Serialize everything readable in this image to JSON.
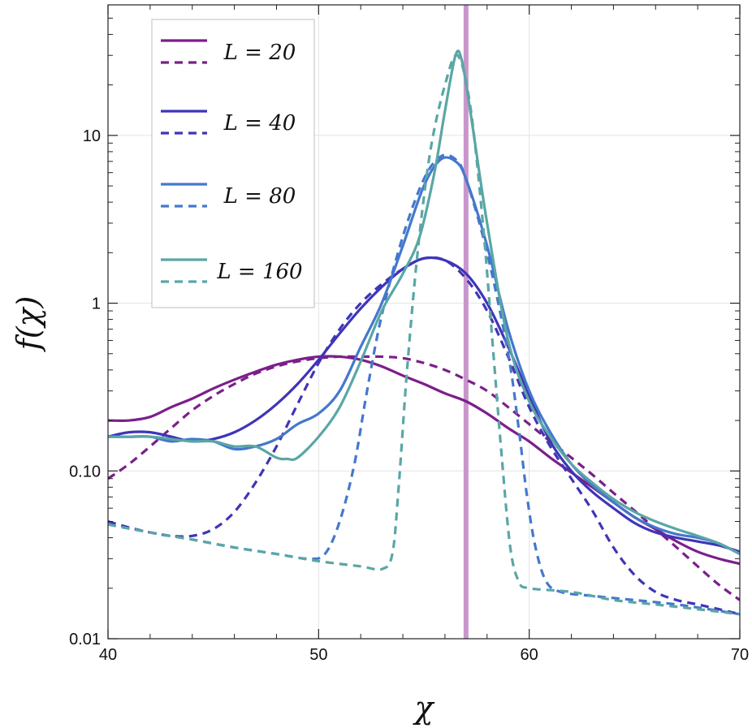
{
  "chart_data": {
    "type": "line",
    "title": "",
    "xlabel": "χ",
    "ylabel": "f(χ)",
    "xlim": [
      40,
      70
    ],
    "ylim": [
      0.01,
      60
    ],
    "yscale": "log",
    "grid": true,
    "legend_position": "top-left",
    "x_ticks": [
      40,
      50,
      60,
      70
    ],
    "x_tick_labels": [
      "40",
      "50",
      "60",
      "70"
    ],
    "y_ticks": [
      0.01,
      0.1,
      1,
      10
    ],
    "y_tick_labels": [
      "0.01",
      "0.10",
      "1",
      "10"
    ],
    "vertical_line": {
      "x": 57.0,
      "color": "#c996cc"
    },
    "legend": [
      "L = 20",
      "L = 40",
      "L = 80",
      "L = 160"
    ],
    "series": [
      {
        "name": "L = 20",
        "color": "#7b1f8a",
        "style": "solid",
        "points": [
          [
            40,
            0.2
          ],
          [
            41,
            0.2
          ],
          [
            42,
            0.21
          ],
          [
            43,
            0.24
          ],
          [
            44,
            0.27
          ],
          [
            45,
            0.31
          ],
          [
            46,
            0.35
          ],
          [
            47,
            0.39
          ],
          [
            48,
            0.43
          ],
          [
            49,
            0.46
          ],
          [
            50,
            0.48
          ],
          [
            51,
            0.48
          ],
          [
            52,
            0.46
          ],
          [
            53,
            0.42
          ],
          [
            54,
            0.37
          ],
          [
            55,
            0.33
          ],
          [
            56,
            0.29
          ],
          [
            57,
            0.26
          ],
          [
            58,
            0.22
          ],
          [
            59,
            0.18
          ],
          [
            60,
            0.15
          ],
          [
            61,
            0.12
          ],
          [
            62,
            0.098
          ],
          [
            63,
            0.08
          ],
          [
            64,
            0.065
          ],
          [
            65,
            0.053
          ],
          [
            66,
            0.045
          ],
          [
            67,
            0.038
          ],
          [
            68,
            0.033
          ],
          [
            69,
            0.03
          ],
          [
            70,
            0.028
          ]
        ]
      },
      {
        "name": "L = 20",
        "color": "#7b1f8a",
        "style": "dashed",
        "points": [
          [
            40,
            0.09
          ],
          [
            41,
            0.11
          ],
          [
            42,
            0.14
          ],
          [
            43,
            0.18
          ],
          [
            44,
            0.23
          ],
          [
            45,
            0.28
          ],
          [
            46,
            0.33
          ],
          [
            47,
            0.38
          ],
          [
            48,
            0.42
          ],
          [
            49,
            0.45
          ],
          [
            50,
            0.47
          ],
          [
            51,
            0.48
          ],
          [
            52,
            0.48
          ],
          [
            53,
            0.48
          ],
          [
            54,
            0.47
          ],
          [
            55,
            0.44
          ],
          [
            56,
            0.4
          ],
          [
            57,
            0.35
          ],
          [
            58,
            0.3
          ],
          [
            59,
            0.24
          ],
          [
            60,
            0.19
          ],
          [
            61,
            0.15
          ],
          [
            62,
            0.12
          ],
          [
            63,
            0.095
          ],
          [
            64,
            0.074
          ],
          [
            65,
            0.058
          ],
          [
            66,
            0.045
          ],
          [
            67,
            0.035
          ],
          [
            68,
            0.027
          ],
          [
            69,
            0.021
          ],
          [
            70,
            0.017
          ]
        ]
      },
      {
        "name": "L = 40",
        "color": "#3f35b8",
        "style": "solid",
        "points": [
          [
            40,
            0.16
          ],
          [
            41,
            0.17
          ],
          [
            42,
            0.17
          ],
          [
            43,
            0.16
          ],
          [
            44,
            0.15
          ],
          [
            45,
            0.155
          ],
          [
            46,
            0.17
          ],
          [
            47,
            0.2
          ],
          [
            48,
            0.25
          ],
          [
            49,
            0.33
          ],
          [
            50,
            0.46
          ],
          [
            51,
            0.66
          ],
          [
            52,
            0.93
          ],
          [
            53,
            1.25
          ],
          [
            54,
            1.6
          ],
          [
            55,
            1.85
          ],
          [
            56,
            1.8
          ],
          [
            57,
            1.5
          ],
          [
            58,
            1.0
          ],
          [
            59,
            0.55
          ],
          [
            60,
            0.28
          ],
          [
            61,
            0.15
          ],
          [
            62,
            0.1
          ],
          [
            63,
            0.075
          ],
          [
            64,
            0.06
          ],
          [
            65,
            0.049
          ],
          [
            66,
            0.043
          ],
          [
            67,
            0.04
          ],
          [
            68,
            0.038
          ],
          [
            69,
            0.036
          ],
          [
            70,
            0.033
          ]
        ]
      },
      {
        "name": "L = 40",
        "color": "#3f35b8",
        "style": "dashed",
        "points": [
          [
            40,
            0.05
          ],
          [
            41,
            0.046
          ],
          [
            42,
            0.043
          ],
          [
            43,
            0.041
          ],
          [
            44,
            0.041
          ],
          [
            45,
            0.045
          ],
          [
            46,
            0.057
          ],
          [
            47,
            0.085
          ],
          [
            48,
            0.14
          ],
          [
            49,
            0.25
          ],
          [
            50,
            0.44
          ],
          [
            51,
            0.7
          ],
          [
            52,
            1.0
          ],
          [
            53,
            1.3
          ],
          [
            54,
            1.6
          ],
          [
            55,
            1.85
          ],
          [
            56,
            1.8
          ],
          [
            57,
            1.4
          ],
          [
            58,
            0.9
          ],
          [
            59,
            0.48
          ],
          [
            60,
            0.24
          ],
          [
            61,
            0.14
          ],
          [
            62,
            0.09
          ],
          [
            63,
            0.058
          ],
          [
            64,
            0.035
          ],
          [
            65,
            0.024
          ],
          [
            66,
            0.019
          ],
          [
            67,
            0.017
          ],
          [
            68,
            0.016
          ],
          [
            69,
            0.015
          ],
          [
            70,
            0.014
          ]
        ]
      },
      {
        "name": "L = 80",
        "color": "#4478cc",
        "style": "solid",
        "points": [
          [
            40,
            0.16
          ],
          [
            41,
            0.16
          ],
          [
            42,
            0.16
          ],
          [
            43,
            0.15
          ],
          [
            44,
            0.155
          ],
          [
            45,
            0.15
          ],
          [
            46,
            0.135
          ],
          [
            47,
            0.14
          ],
          [
            48,
            0.155
          ],
          [
            49,
            0.19
          ],
          [
            50,
            0.22
          ],
          [
            51,
            0.3
          ],
          [
            52,
            0.55
          ],
          [
            53,
            1.0
          ],
          [
            54,
            2.2
          ],
          [
            55,
            5.0
          ],
          [
            55.8,
            7.2
          ],
          [
            56.5,
            7.0
          ],
          [
            57,
            5.5
          ],
          [
            58,
            2.2
          ],
          [
            59,
            0.7
          ],
          [
            60,
            0.3
          ],
          [
            61,
            0.17
          ],
          [
            62,
            0.11
          ],
          [
            63,
            0.082
          ],
          [
            64,
            0.065
          ],
          [
            65,
            0.053
          ],
          [
            66,
            0.046
          ],
          [
            67,
            0.042
          ],
          [
            68,
            0.04
          ],
          [
            69,
            0.037
          ],
          [
            70,
            0.032
          ]
        ]
      },
      {
        "name": "L = 80",
        "color": "#4478cc",
        "style": "dashed",
        "points": [
          [
            40,
            0.048
          ],
          [
            42,
            0.043
          ],
          [
            44,
            0.039
          ],
          [
            46,
            0.035
          ],
          [
            48,
            0.032
          ],
          [
            49.5,
            0.03
          ],
          [
            50.3,
            0.032
          ],
          [
            51,
            0.05
          ],
          [
            51.7,
            0.11
          ],
          [
            52.3,
            0.3
          ],
          [
            53,
            0.85
          ],
          [
            54,
            2.5
          ],
          [
            55,
            5.5
          ],
          [
            55.8,
            7.5
          ],
          [
            56.5,
            7.2
          ],
          [
            57,
            5.5
          ],
          [
            58,
            2.0
          ],
          [
            59,
            0.5
          ],
          [
            59.5,
            0.18
          ],
          [
            59.9,
            0.07
          ],
          [
            60.3,
            0.035
          ],
          [
            60.8,
            0.022
          ],
          [
            61.5,
            0.019
          ],
          [
            63,
            0.018
          ],
          [
            65,
            0.017
          ],
          [
            67,
            0.016
          ],
          [
            68.5,
            0.015
          ],
          [
            70,
            0.014
          ]
        ]
      },
      {
        "name": "L = 160",
        "color": "#5aa6a6",
        "style": "solid",
        "points": [
          [
            40,
            0.16
          ],
          [
            41,
            0.16
          ],
          [
            42,
            0.16
          ],
          [
            43,
            0.155
          ],
          [
            44,
            0.15
          ],
          [
            45,
            0.15
          ],
          [
            46,
            0.14
          ],
          [
            47,
            0.14
          ],
          [
            48,
            0.12
          ],
          [
            48.5,
            0.118
          ],
          [
            49,
            0.12
          ],
          [
            50,
            0.16
          ],
          [
            51,
            0.24
          ],
          [
            52,
            0.45
          ],
          [
            53,
            0.9
          ],
          [
            54,
            1.5
          ],
          [
            54.8,
            2.5
          ],
          [
            55.5,
            6.0
          ],
          [
            56,
            14
          ],
          [
            56.5,
            30
          ],
          [
            56.8,
            28
          ],
          [
            57.2,
            14
          ],
          [
            58,
            3.0
          ],
          [
            59,
            0.6
          ],
          [
            60,
            0.26
          ],
          [
            61,
            0.16
          ],
          [
            62,
            0.11
          ],
          [
            63,
            0.085
          ],
          [
            64,
            0.068
          ],
          [
            65,
            0.057
          ],
          [
            66,
            0.05
          ],
          [
            67,
            0.045
          ],
          [
            68,
            0.041
          ],
          [
            69,
            0.037
          ],
          [
            70,
            0.032
          ]
        ]
      },
      {
        "name": "L = 160",
        "color": "#5aa6a6",
        "style": "dashed",
        "points": [
          [
            40,
            0.048
          ],
          [
            42,
            0.043
          ],
          [
            44,
            0.039
          ],
          [
            46,
            0.035
          ],
          [
            48,
            0.032
          ],
          [
            50,
            0.029
          ],
          [
            52,
            0.027
          ],
          [
            53,
            0.026
          ],
          [
            53.5,
            0.032
          ],
          [
            53.8,
            0.08
          ],
          [
            54.2,
            0.4
          ],
          [
            54.7,
            2.0
          ],
          [
            55.3,
            8.0
          ],
          [
            56,
            20
          ],
          [
            56.6,
            30
          ],
          [
            57.2,
            15
          ],
          [
            57.8,
            3.0
          ],
          [
            58.3,
            0.5
          ],
          [
            58.7,
            0.12
          ],
          [
            59.1,
            0.035
          ],
          [
            59.5,
            0.022
          ],
          [
            60,
            0.02
          ],
          [
            62,
            0.019
          ],
          [
            64,
            0.017
          ],
          [
            66,
            0.016
          ],
          [
            68,
            0.015
          ],
          [
            70,
            0.014
          ]
        ]
      }
    ]
  }
}
